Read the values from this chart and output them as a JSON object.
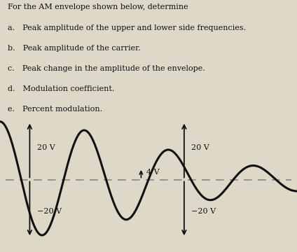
{
  "bg_color": "#ddd8c8",
  "text_color": "#111111",
  "title_lines": [
    "For the AM envelope shown below, determine",
    "a. Peak amplitude of the upper and lower side frequencies.",
    "b. Peak amplitude of the carrier.",
    "c. Peak change in the amplitude of the envelope.",
    "d. Modulation coefficient.",
    "e. Percent modulation."
  ],
  "title_bold": [
    false,
    false,
    false,
    false,
    false,
    false
  ],
  "peak_voltage": 20,
  "min_voltage": 4,
  "envelope_color": "#111111",
  "dashed_color": "#888888",
  "arrow_color": "#111111",
  "line_width": 2.2,
  "font_size_text": 8.0,
  "font_size_label": 8.0
}
